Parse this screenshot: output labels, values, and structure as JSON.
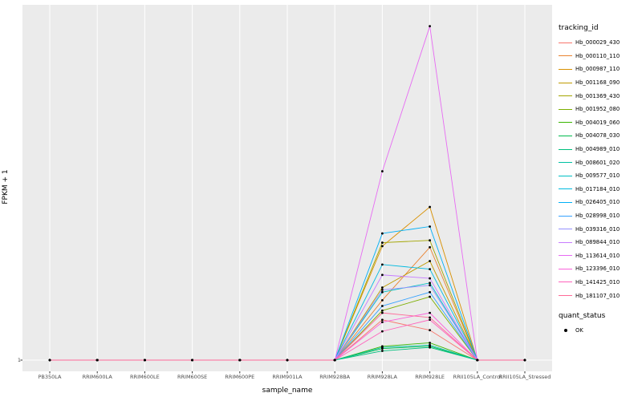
{
  "chart_data": {
    "type": "line",
    "title": "",
    "xlabel": "sample_name",
    "ylabel": "FPKM + 1",
    "y_tick_label": "1",
    "ylim": [
      1,
      30.5
    ],
    "y_ticks": [
      1
    ],
    "grid": "vertical-major",
    "legend_position": "right",
    "panel_bg": "#EBEBEB",
    "grid_color": "#FFFFFF",
    "point_color": "#000000",
    "legend": {
      "color_title": "tracking_id",
      "shape_title": "quant_status",
      "shape_label": "OK"
    },
    "categories": [
      "PB350LA",
      "RRIM600LA",
      "RRIM600LE",
      "RRIM600SE",
      "RRIM600PE",
      "RRIM901LA",
      "RRIM928BA",
      "RRIM928LA",
      "RRIM928LE",
      "RRII105LA_Control",
      "RRII105LA_Stressed"
    ],
    "series": [
      {
        "name": "Hb_000029_430",
        "color": "#F8766D",
        "values": [
          1,
          1,
          1,
          1,
          1,
          1,
          1,
          4.5,
          3.6,
          1,
          1
        ]
      },
      {
        "name": "Hb_000110_110",
        "color": "#EA8331",
        "values": [
          1,
          1,
          1,
          1,
          1,
          1,
          1,
          6.2,
          10.8,
          1,
          1
        ]
      },
      {
        "name": "Hb_000987_110",
        "color": "#D89000",
        "values": [
          1,
          1,
          1,
          1,
          1,
          1,
          1,
          10.9,
          14.3,
          1,
          1
        ]
      },
      {
        "name": "Hb_001168_090",
        "color": "#C09B00",
        "values": [
          1,
          1,
          1,
          1,
          1,
          1,
          1,
          7.3,
          9.6,
          1,
          1
        ]
      },
      {
        "name": "Hb_001369_430",
        "color": "#A3A500",
        "values": [
          1,
          1,
          1,
          1,
          1,
          1,
          1,
          11.2,
          11.4,
          1,
          1
        ]
      },
      {
        "name": "Hb_001952_080",
        "color": "#7CAE00",
        "values": [
          1,
          1,
          1,
          1,
          1,
          1,
          1,
          5.3,
          6.5,
          1,
          1
        ]
      },
      {
        "name": "Hb_004019_060",
        "color": "#39B600",
        "values": [
          1,
          1,
          1,
          1,
          1,
          1,
          1,
          2.2,
          2.5,
          1,
          1
        ]
      },
      {
        "name": "Hb_004078_030",
        "color": "#00BB4E",
        "values": [
          1,
          1,
          1,
          1,
          1,
          1,
          1,
          2.0,
          2.2,
          1,
          1
        ]
      },
      {
        "name": "Hb_004989_010",
        "color": "#00BF7D",
        "values": [
          1,
          1,
          1,
          1,
          1,
          1,
          1,
          1.8,
          2.1,
          1,
          1
        ]
      },
      {
        "name": "Hb_008601_020",
        "color": "#00C1A3",
        "values": [
          1,
          1,
          1,
          1,
          1,
          1,
          1,
          2.1,
          2.3,
          1,
          1
        ]
      },
      {
        "name": "Hb_009577_010",
        "color": "#00BFC4",
        "values": [
          1,
          1,
          1,
          1,
          1,
          1,
          1,
          6.9,
          7.7,
          1,
          1
        ]
      },
      {
        "name": "Hb_017184_010",
        "color": "#00BAE0",
        "values": [
          1,
          1,
          1,
          1,
          1,
          1,
          1,
          9.3,
          8.9,
          1,
          1
        ]
      },
      {
        "name": "Hb_026405_010",
        "color": "#00B0F6",
        "values": [
          1,
          1,
          1,
          1,
          1,
          1,
          1,
          12.0,
          12.6,
          1,
          1
        ]
      },
      {
        "name": "Hb_028998_010",
        "color": "#35A2FF",
        "values": [
          1,
          1,
          1,
          1,
          1,
          1,
          1,
          5.7,
          6.9,
          1,
          1
        ]
      },
      {
        "name": "Hb_039316_010",
        "color": "#9590FF",
        "values": [
          1,
          1,
          1,
          1,
          1,
          1,
          1,
          7.1,
          7.5,
          1,
          1
        ]
      },
      {
        "name": "Hb_089844_010",
        "color": "#C77CFF",
        "values": [
          1,
          1,
          1,
          1,
          1,
          1,
          1,
          8.4,
          8.1,
          1,
          1
        ]
      },
      {
        "name": "Hb_113614_010",
        "color": "#E76BF3",
        "values": [
          1,
          1,
          1,
          1,
          1,
          1,
          1,
          17.4,
          30.0,
          1,
          1
        ]
      },
      {
        "name": "Hb_123396_010",
        "color": "#FA62DB",
        "values": [
          1,
          1,
          1,
          1,
          1,
          1,
          1,
          4.3,
          5.1,
          1,
          1
        ]
      },
      {
        "name": "Hb_141425_010",
        "color": "#FF62BC",
        "values": [
          1,
          1,
          1,
          1,
          1,
          1,
          1,
          3.5,
          4.5,
          1,
          1
        ]
      },
      {
        "name": "Hb_181107_010",
        "color": "#FF6A98",
        "values": [
          1,
          1,
          1,
          1,
          1,
          1,
          1,
          5.1,
          4.7,
          1,
          1
        ]
      }
    ]
  }
}
